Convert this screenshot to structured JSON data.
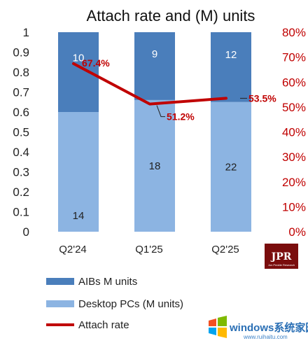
{
  "chart_data": {
    "type": "bar",
    "stacked": true,
    "title": "Attach rate and (M) units",
    "categories": [
      "Q2'24",
      "Q1'25",
      "Q2'25"
    ],
    "series": [
      {
        "name": "Desktop PCs (M units)",
        "kind": "bar",
        "axis": "left",
        "color": "#8cb4e2",
        "values": [
          0.6,
          0.66,
          0.65
        ],
        "labels": [
          "14",
          "18",
          "22"
        ]
      },
      {
        "name": "AIBs M units",
        "kind": "bar",
        "axis": "left",
        "color": "#4a7ebb",
        "values": [
          0.4,
          0.34,
          0.35
        ],
        "labels": [
          "10",
          "9",
          "12"
        ]
      },
      {
        "name": "Attach rate",
        "kind": "line",
        "axis": "right",
        "color": "#c00000",
        "values": [
          67.4,
          51.2,
          53.5
        ],
        "labels": [
          "67.4%",
          "51.2%",
          "53.5%"
        ]
      }
    ],
    "ylim_left": [
      0,
      1
    ],
    "yticks_left": [
      "0",
      "0.1",
      "0.2",
      "0.3",
      "0.4",
      "0.5",
      "0.6",
      "0.7",
      "0.8",
      "0.9",
      "1"
    ],
    "ylim_right": [
      0,
      80
    ],
    "yticks_right": [
      "0%",
      "10%",
      "20%",
      "30%",
      "40%",
      "50%",
      "60%",
      "70%",
      "80%"
    ],
    "legend_position": "bottom-left",
    "legend": [
      "AIBs M units",
      "Desktop PCs (M units)",
      "Attach rate"
    ]
  },
  "logo": {
    "text": "JPR",
    "subtext": "Jon Peddie Research"
  },
  "watermark": {
    "text": "windows系统家园",
    "subtext": "www.ruihaitu.com"
  },
  "colors": {
    "aib": "#4a7ebb",
    "desktop": "#8cb4e2",
    "attach": "#c00000"
  }
}
